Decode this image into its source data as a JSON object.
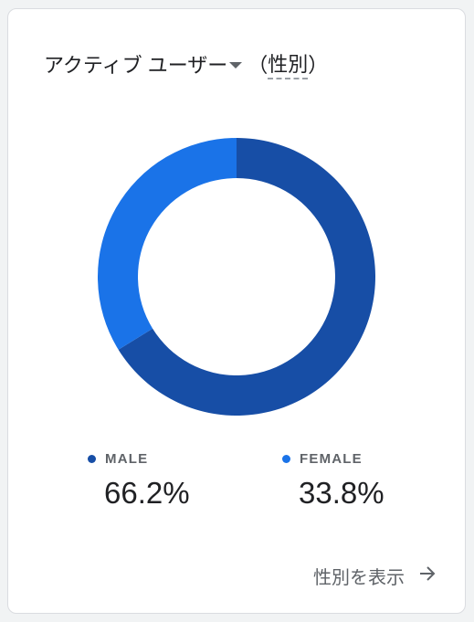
{
  "card": {
    "metric_label": "アクティブ ユーザー",
    "dimension_open": "（",
    "dimension_label": "性別",
    "dimension_close": "）"
  },
  "chart_data": {
    "type": "pie",
    "donut": true,
    "categories": [
      "MALE",
      "FEMALE"
    ],
    "values": [
      66.2,
      33.8
    ],
    "value_labels": [
      "66.2%",
      "33.8%"
    ],
    "colors": [
      "#174ea6",
      "#1a73e8"
    ]
  },
  "legend": [
    {
      "label": "MALE",
      "value": "66.2%",
      "color": "#174ea6"
    },
    {
      "label": "FEMALE",
      "value": "33.8%",
      "color": "#1a73e8"
    }
  ],
  "footer": {
    "link_label": "性別を表示",
    "icon": "arrow-right-icon"
  }
}
